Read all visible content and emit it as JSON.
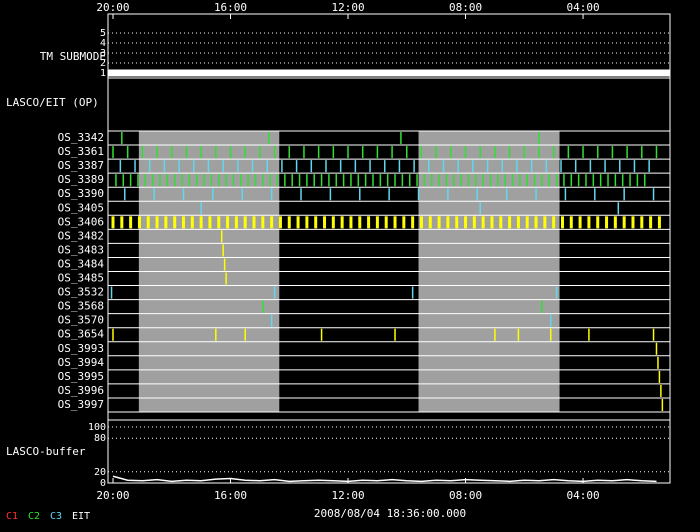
{
  "chart_data": {
    "type": "timeline",
    "xlim": [
      -0.17,
      18.96
    ],
    "xticks": [
      {
        "value": 0,
        "label": "20:00"
      },
      {
        "value": 4,
        "label": "16:00"
      },
      {
        "value": 8,
        "label": "12:00"
      },
      {
        "value": 12,
        "label": "08:00"
      },
      {
        "value": 16,
        "label": "04:00"
      }
    ],
    "timestamp": "2008/08/04 18:36:00.000",
    "legend": [
      {
        "name": "C1",
        "color": "#ff3030"
      },
      {
        "name": "C2",
        "color": "#30e030"
      },
      {
        "name": "C3",
        "color": "#60d8f0"
      },
      {
        "name": "EIT",
        "color": "#ffffff"
      }
    ],
    "submode": {
      "label": "TM SUBMODE",
      "ylim": [
        0.5,
        5.5
      ],
      "yticks": [
        1,
        2,
        3,
        4,
        5
      ],
      "x": [
        -0.17,
        18.96
      ],
      "values": [
        1,
        1
      ],
      "color": "#ffffff"
    },
    "section_label": "LASCO/EIT (OP)",
    "shaded": [
      [
        0.88,
        5.66
      ],
      [
        10.4,
        15.2
      ]
    ],
    "rows": [
      {
        "name": "OS_3342",
        "color": "#30e030",
        "events": [
          0.3,
          5.3,
          9.8,
          14.5
        ]
      },
      {
        "name": "OS_3361",
        "color": "#30e030",
        "events": [
          0,
          0.5,
          1,
          1.5,
          2,
          2.5,
          3,
          3.5,
          4,
          4.5,
          5,
          5.5,
          6,
          6.5,
          7,
          7.5,
          8,
          8.5,
          9,
          9.5,
          10,
          10.5,
          11,
          11.5,
          12,
          12.5,
          13,
          13.5,
          14,
          14.5,
          15,
          15.5,
          16,
          16.5,
          17,
          17.5,
          18,
          18.5
        ]
      },
      {
        "name": "OS_3387",
        "color": "#60d8f0",
        "events": [
          0.25,
          0.75,
          1.25,
          1.75,
          2.25,
          2.75,
          3.25,
          3.75,
          4.25,
          4.75,
          5.25,
          5.75,
          6.25,
          6.75,
          7.25,
          7.75,
          8.25,
          8.75,
          9.25,
          9.75,
          10.25,
          10.75,
          11.25,
          11.75,
          12.25,
          12.75,
          13.25,
          13.75,
          14.25,
          14.75,
          15.25,
          15.75,
          16.25,
          16.75,
          17.25,
          17.75,
          18.25
        ]
      },
      {
        "name": "OS_3389",
        "color": "#30e030",
        "events": [
          0.1,
          0.35,
          0.6,
          0.85,
          1.1,
          1.35,
          1.6,
          1.85,
          2.1,
          2.35,
          2.6,
          2.85,
          3.1,
          3.35,
          3.6,
          3.85,
          4.1,
          4.35,
          4.6,
          4.85,
          5.1,
          5.35,
          5.6,
          5.85,
          6.1,
          6.35,
          6.6,
          6.85,
          7.1,
          7.35,
          7.6,
          7.85,
          8.1,
          8.35,
          8.6,
          8.85,
          9.1,
          9.35,
          9.6,
          9.85,
          10.1,
          10.35,
          10.6,
          10.85,
          11.1,
          11.35,
          11.6,
          11.85,
          12.1,
          12.35,
          12.6,
          12.85,
          13.1,
          13.35,
          13.6,
          13.85,
          14.1,
          14.35,
          14.6,
          14.85,
          15.1,
          15.35,
          15.6,
          15.85,
          16.1,
          16.35,
          16.6,
          16.85,
          17.1,
          17.35,
          17.6,
          17.85,
          18.1
        ]
      },
      {
        "name": "OS_3390",
        "color": "#60d8f0",
        "events": [
          0.4,
          1.4,
          2.4,
          3.4,
          4.4,
          5.4,
          6.4,
          7.4,
          8.4,
          9.4,
          10.4,
          11.4,
          12.4,
          13.4,
          14.4,
          15.4,
          16.4,
          17.4,
          18.4
        ]
      },
      {
        "name": "OS_3405",
        "color": "#60d8f0",
        "events": [
          3.0,
          12.5,
          17.2
        ]
      },
      {
        "name": "OS_3406",
        "color": "#ffff00",
        "events": [
          0,
          0.3,
          0.6,
          0.9,
          1.2,
          1.5,
          1.8,
          2.1,
          2.4,
          2.7,
          3,
          3.3,
          3.6,
          3.9,
          4.2,
          4.5,
          4.8,
          5.1,
          5.4,
          5.7,
          6,
          6.3,
          6.6,
          6.9,
          7.2,
          7.5,
          7.8,
          8.1,
          8.4,
          8.7,
          9,
          9.3,
          9.6,
          9.9,
          10.2,
          10.5,
          10.8,
          11.1,
          11.4,
          11.7,
          12,
          12.3,
          12.6,
          12.9,
          13.2,
          13.5,
          13.8,
          14.1,
          14.4,
          14.7,
          15,
          15.3,
          15.6,
          15.9,
          16.2,
          16.5,
          16.8,
          17.1,
          17.4,
          17.7,
          18,
          18.3,
          18.6
        ]
      },
      {
        "name": "OS_3482",
        "color": "#ffff00",
        "events": [
          3.7
        ]
      },
      {
        "name": "OS_3483",
        "color": "#ffff00",
        "events": [
          3.75
        ]
      },
      {
        "name": "OS_3484",
        "color": "#ffff00",
        "events": [
          3.8
        ]
      },
      {
        "name": "OS_3485",
        "color": "#ffff00",
        "events": [
          3.85
        ]
      },
      {
        "name": "OS_3532",
        "color": "#60d8f0",
        "events": [
          -0.05,
          5.5,
          10.2,
          15.1
        ]
      },
      {
        "name": "OS_3568",
        "color": "#30e030",
        "events": [
          5.1,
          14.6
        ]
      },
      {
        "name": "OS_3570",
        "color": "#60d8f0",
        "events": [
          5.4,
          14.9
        ]
      },
      {
        "name": "OS_3654",
        "color": "#ffff00",
        "events": [
          0,
          3.5,
          4.5,
          7.1,
          9.6,
          13.0,
          13.8,
          14.9,
          16.2,
          18.4
        ]
      },
      {
        "name": "OS_3993",
        "color": "#ffff00",
        "events": [
          18.5
        ]
      },
      {
        "name": "OS_3994",
        "color": "#ffff00",
        "events": [
          18.55
        ]
      },
      {
        "name": "OS_3995",
        "color": "#ffff00",
        "events": [
          18.6
        ]
      },
      {
        "name": "OS_3996",
        "color": "#ffff00",
        "events": [
          18.65
        ]
      },
      {
        "name": "OS_3997",
        "color": "#ffff00",
        "events": [
          18.7
        ]
      }
    ],
    "buffer": {
      "label": "LASCO-buffer",
      "ylim": [
        0,
        100
      ],
      "yticks": [
        0,
        20,
        80,
        100
      ],
      "color": "#ffffff",
      "x": [
        0,
        0.5,
        1,
        1.5,
        2,
        2.5,
        3,
        3.5,
        4,
        4.5,
        5,
        5.5,
        6,
        6.5,
        7,
        7.5,
        8,
        8.5,
        9,
        9.5,
        10,
        10.5,
        11,
        11.5,
        12,
        12.5,
        13,
        13.5,
        14,
        14.5,
        15,
        15.5,
        16,
        16.5,
        17,
        17.5,
        18,
        18.5
      ],
      "values": [
        12,
        5,
        4,
        6,
        3,
        5,
        4,
        7,
        8,
        5,
        4,
        6,
        3,
        4,
        5,
        4,
        3,
        5,
        4,
        6,
        4,
        3,
        5,
        4,
        6,
        5,
        4,
        3,
        5,
        4,
        6,
        4,
        3,
        5,
        4,
        6,
        4,
        3
      ]
    }
  }
}
